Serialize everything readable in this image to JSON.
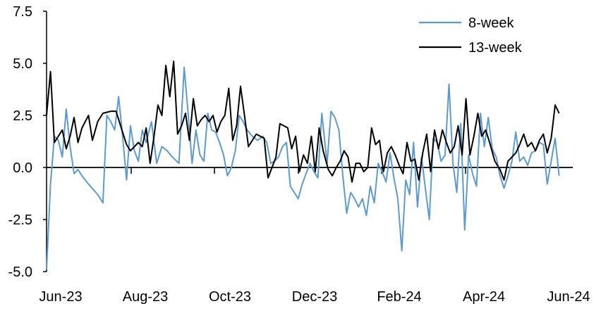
{
  "chart_data": {
    "type": "line",
    "title": "",
    "xlabel": "",
    "ylabel": "",
    "ylim": [
      -5.0,
      7.5
    ],
    "yticks": [
      "7.5",
      "5.0",
      "2.5",
      "0.0",
      "-2.5",
      "-5.0"
    ],
    "xticks": [
      "Jun-23",
      "Aug-23",
      "Oct-23",
      "Dec-23",
      "Feb-24",
      "Apr-24",
      "Jun-24"
    ],
    "xlim": [
      "2023-06-01",
      "2024-06-30"
    ],
    "legend": "top-right",
    "grid": false,
    "series": [
      {
        "name": "8-week",
        "color": "#5b9bd5",
        "points": [
          [
            "2023-06-01",
            -4.9
          ],
          [
            "2023-06-04",
            -0.8
          ],
          [
            "2023-06-07",
            1.5
          ],
          [
            "2023-06-10",
            1.3
          ],
          [
            "2023-06-13",
            0.5
          ],
          [
            "2023-06-16",
            2.8
          ],
          [
            "2023-06-19",
            1.0
          ],
          [
            "2023-06-22",
            -0.3
          ],
          [
            "2023-06-25",
            -0.1
          ],
          [
            "2023-06-28",
            -0.4
          ],
          [
            "2023-07-03",
            -0.8
          ],
          [
            "2023-07-10",
            -1.3
          ],
          [
            "2023-07-14",
            -1.7
          ],
          [
            "2023-07-17",
            2.5
          ],
          [
            "2023-07-20",
            2.2
          ],
          [
            "2023-07-23",
            1.8
          ],
          [
            "2023-07-26",
            3.4
          ],
          [
            "2023-07-29",
            1.5
          ],
          [
            "2023-08-01",
            -0.6
          ],
          [
            "2023-08-04",
            2.0
          ],
          [
            "2023-08-07",
            0.8
          ],
          [
            "2023-08-10",
            0.3
          ],
          [
            "2023-08-13",
            1.8
          ],
          [
            "2023-08-16",
            1.2
          ],
          [
            "2023-08-20",
            2.2
          ],
          [
            "2023-08-24",
            0.2
          ],
          [
            "2023-08-28",
            1.0
          ],
          [
            "2023-09-01",
            0.8
          ],
          [
            "2023-09-05",
            0.5
          ],
          [
            "2023-09-10",
            0.2
          ],
          [
            "2023-09-14",
            4.8
          ],
          [
            "2023-09-17",
            2.6
          ],
          [
            "2023-09-20",
            0.2
          ],
          [
            "2023-09-23",
            1.8
          ],
          [
            "2023-09-26",
            0.6
          ],
          [
            "2023-09-29",
            0.3
          ],
          [
            "2023-10-02",
            2.6
          ],
          [
            "2023-10-05",
            1.8
          ],
          [
            "2023-10-08",
            1.7
          ],
          [
            "2023-10-11",
            1.2
          ],
          [
            "2023-10-14",
            0.6
          ],
          [
            "2023-10-17",
            -0.4
          ],
          [
            "2023-10-20",
            0.0
          ],
          [
            "2023-10-23",
            0.8
          ],
          [
            "2023-10-26",
            2.5
          ],
          [
            "2023-10-29",
            2.2
          ],
          [
            "2023-11-01",
            1.8
          ],
          [
            "2023-11-05",
            1.5
          ],
          [
            "2023-11-09",
            1.3
          ],
          [
            "2023-11-13",
            1.5
          ],
          [
            "2023-11-16",
            1.2
          ],
          [
            "2023-11-19",
            0.2
          ],
          [
            "2023-11-22",
            0.3
          ],
          [
            "2023-11-25",
            0.5
          ],
          [
            "2023-11-28",
            1.0
          ],
          [
            "2023-12-01",
            1.2
          ],
          [
            "2023-12-04",
            -0.9
          ],
          [
            "2023-12-07",
            -1.2
          ],
          [
            "2023-12-10",
            -1.5
          ],
          [
            "2023-12-13",
            -0.8
          ],
          [
            "2023-12-16",
            -0.3
          ],
          [
            "2023-12-19",
            0.2
          ],
          [
            "2023-12-22",
            -0.2
          ],
          [
            "2023-12-25",
            -0.5
          ],
          [
            "2023-12-28",
            2.6
          ],
          [
            "2024-01-01",
            0.2
          ],
          [
            "2024-01-04",
            2.7
          ],
          [
            "2024-01-07",
            2.4
          ],
          [
            "2024-01-10",
            1.8
          ],
          [
            "2024-01-13",
            -0.4
          ],
          [
            "2024-01-16",
            -2.2
          ],
          [
            "2024-01-19",
            -1.2
          ],
          [
            "2024-01-22",
            -1.5
          ],
          [
            "2024-01-25",
            -1.9
          ],
          [
            "2024-01-28",
            -1.5
          ],
          [
            "2024-01-31",
            -2.3
          ],
          [
            "2024-02-03",
            -0.9
          ],
          [
            "2024-02-06",
            -1.7
          ],
          [
            "2024-02-09",
            0.2
          ],
          [
            "2024-02-12",
            -0.2
          ],
          [
            "2024-02-15",
            -0.7
          ],
          [
            "2024-02-18",
            0.7
          ],
          [
            "2024-02-21",
            -0.5
          ],
          [
            "2024-02-24",
            -1.5
          ],
          [
            "2024-02-27",
            -4.0
          ],
          [
            "2024-03-01",
            -0.6
          ],
          [
            "2024-03-04",
            -1.3
          ],
          [
            "2024-03-07",
            1.2
          ],
          [
            "2024-03-10",
            -1.9
          ],
          [
            "2024-03-13",
            0.5
          ],
          [
            "2024-03-16",
            -1.0
          ],
          [
            "2024-03-19",
            -2.5
          ],
          [
            "2024-03-22",
            1.4
          ],
          [
            "2024-03-25",
            1.2
          ],
          [
            "2024-03-28",
            0.3
          ],
          [
            "2024-03-31",
            0.6
          ],
          [
            "2024-04-03",
            4.0
          ],
          [
            "2024-04-06",
            0.2
          ],
          [
            "2024-04-09",
            -1.2
          ],
          [
            "2024-04-12",
            2.1
          ],
          [
            "2024-04-15",
            -3.0
          ],
          [
            "2024-04-18",
            0.6
          ],
          [
            "2024-04-21",
            -0.3
          ],
          [
            "2024-04-24",
            -0.9
          ],
          [
            "2024-04-27",
            2.6
          ],
          [
            "2024-04-30",
            1.0
          ],
          [
            "2024-05-03",
            2.4
          ],
          [
            "2024-05-06",
            0.9
          ],
          [
            "2024-05-09",
            0.5
          ],
          [
            "2024-05-12",
            -0.4
          ],
          [
            "2024-05-15",
            -1.0
          ],
          [
            "2024-05-18",
            -0.4
          ],
          [
            "2024-05-21",
            0.3
          ],
          [
            "2024-05-24",
            1.7
          ],
          [
            "2024-05-27",
            0.3
          ],
          [
            "2024-05-30",
            0.5
          ],
          [
            "2024-06-02",
            0.1
          ],
          [
            "2024-06-05",
            0.7
          ],
          [
            "2024-06-08",
            0.8
          ],
          [
            "2024-06-11",
            1.2
          ],
          [
            "2024-06-14",
            1.1
          ],
          [
            "2024-06-17",
            -0.8
          ],
          [
            "2024-06-20",
            0.3
          ],
          [
            "2024-06-23",
            1.4
          ],
          [
            "2024-06-26",
            -0.4
          ]
        ]
      },
      {
        "name": "13-week",
        "color": "#000000",
        "points": [
          [
            "2023-06-01",
            2.5
          ],
          [
            "2023-06-04",
            4.6
          ],
          [
            "2023-06-07",
            1.2
          ],
          [
            "2023-06-10",
            1.5
          ],
          [
            "2023-06-13",
            1.8
          ],
          [
            "2023-06-16",
            0.9
          ],
          [
            "2023-06-19",
            1.5
          ],
          [
            "2023-06-22",
            2.4
          ],
          [
            "2023-06-25",
            1.2
          ],
          [
            "2023-06-28",
            1.9
          ],
          [
            "2023-07-03",
            2.5
          ],
          [
            "2023-07-06",
            1.3
          ],
          [
            "2023-07-10",
            2.2
          ],
          [
            "2023-07-14",
            2.6
          ],
          [
            "2023-07-20",
            2.7
          ],
          [
            "2023-07-24",
            2.7
          ],
          [
            "2023-07-28",
            1.9
          ],
          [
            "2023-08-01",
            1.1
          ],
          [
            "2023-08-04",
            0.8
          ],
          [
            "2023-08-07",
            1.0
          ],
          [
            "2023-08-10",
            1.2
          ],
          [
            "2023-08-13",
            1.0
          ],
          [
            "2023-08-16",
            1.9
          ],
          [
            "2023-08-19",
            0.2
          ],
          [
            "2023-08-22",
            1.5
          ],
          [
            "2023-08-25",
            3.0
          ],
          [
            "2023-08-28",
            2.5
          ],
          [
            "2023-08-31",
            4.9
          ],
          [
            "2023-09-03",
            3.4
          ],
          [
            "2023-09-06",
            5.1
          ],
          [
            "2023-09-09",
            1.6
          ],
          [
            "2023-09-12",
            2.0
          ],
          [
            "2023-09-15",
            2.6
          ],
          [
            "2023-09-18",
            1.3
          ],
          [
            "2023-09-21",
            3.3
          ],
          [
            "2023-09-24",
            2.0
          ],
          [
            "2023-09-27",
            2.3
          ],
          [
            "2023-09-30",
            2.5
          ],
          [
            "2023-10-03",
            2.2
          ],
          [
            "2023-10-06",
            2.5
          ],
          [
            "2023-10-09",
            1.7
          ],
          [
            "2023-10-12",
            2.2
          ],
          [
            "2023-10-15",
            2.5
          ],
          [
            "2023-10-18",
            3.8
          ],
          [
            "2023-10-21",
            1.3
          ],
          [
            "2023-10-24",
            2.0
          ],
          [
            "2023-10-27",
            3.9
          ],
          [
            "2023-10-30",
            2.5
          ],
          [
            "2023-11-02",
            1.0
          ],
          [
            "2023-11-05",
            1.3
          ],
          [
            "2023-11-08",
            1.6
          ],
          [
            "2023-11-11",
            1.5
          ],
          [
            "2023-11-14",
            1.4
          ],
          [
            "2023-11-17",
            -0.5
          ],
          [
            "2023-11-20",
            0.0
          ],
          [
            "2023-11-23",
            0.5
          ],
          [
            "2023-11-26",
            2.1
          ],
          [
            "2023-11-29",
            2.0
          ],
          [
            "2023-12-02",
            1.9
          ],
          [
            "2023-12-05",
            0.9
          ],
          [
            "2023-12-08",
            1.5
          ],
          [
            "2023-12-11",
            -0.2
          ],
          [
            "2023-12-14",
            0.6
          ],
          [
            "2023-12-17",
            0.2
          ],
          [
            "2023-12-20",
            1.5
          ],
          [
            "2023-12-23",
            -0.2
          ],
          [
            "2023-12-26",
            1.9
          ],
          [
            "2023-12-29",
            0.8
          ],
          [
            "2024-01-02",
            -0.1
          ],
          [
            "2024-01-05",
            -0.4
          ],
          [
            "2024-01-08",
            0.0
          ],
          [
            "2024-01-11",
            0.3
          ],
          [
            "2024-01-14",
            0.8
          ],
          [
            "2024-01-17",
            0.5
          ],
          [
            "2024-01-20",
            -0.7
          ],
          [
            "2024-01-23",
            0.2
          ],
          [
            "2024-01-26",
            0.2
          ],
          [
            "2024-01-29",
            -0.2
          ],
          [
            "2024-02-01",
            0.0
          ],
          [
            "2024-02-04",
            1.9
          ],
          [
            "2024-02-07",
            1.1
          ],
          [
            "2024-02-10",
            1.3
          ],
          [
            "2024-02-13",
            -0.2
          ],
          [
            "2024-02-16",
            0.7
          ],
          [
            "2024-02-19",
            1.0
          ],
          [
            "2024-02-22",
            0.6
          ],
          [
            "2024-02-25",
            0.1
          ],
          [
            "2024-02-28",
            -0.3
          ],
          [
            "2024-03-02",
            1.2
          ],
          [
            "2024-03-05",
            0.3
          ],
          [
            "2024-03-08",
            0.4
          ],
          [
            "2024-03-11",
            -0.6
          ],
          [
            "2024-03-14",
            0.7
          ],
          [
            "2024-03-17",
            1.6
          ],
          [
            "2024-03-20",
            -0.2
          ],
          [
            "2024-03-23",
            1.8
          ],
          [
            "2024-03-26",
            0.9
          ],
          [
            "2024-03-29",
            1.8
          ],
          [
            "2024-04-01",
            1.2
          ],
          [
            "2024-04-04",
            0.7
          ],
          [
            "2024-04-07",
            1.0
          ],
          [
            "2024-04-10",
            2.0
          ],
          [
            "2024-04-13",
            0.6
          ],
          [
            "2024-04-16",
            3.3
          ],
          [
            "2024-04-19",
            0.6
          ],
          [
            "2024-04-22",
            1.5
          ],
          [
            "2024-04-25",
            2.6
          ],
          [
            "2024-04-28",
            1.5
          ],
          [
            "2024-05-01",
            1.8
          ],
          [
            "2024-05-04",
            1.2
          ],
          [
            "2024-05-08",
            0.3
          ],
          [
            "2024-05-12",
            -0.1
          ],
          [
            "2024-05-15",
            -0.6
          ],
          [
            "2024-05-18",
            0.3
          ],
          [
            "2024-05-21",
            0.5
          ],
          [
            "2024-05-24",
            0.7
          ],
          [
            "2024-05-27",
            1.1
          ],
          [
            "2024-05-30",
            1.6
          ],
          [
            "2024-06-02",
            1.0
          ],
          [
            "2024-06-05",
            1.2
          ],
          [
            "2024-06-08",
            0.8
          ],
          [
            "2024-06-11",
            1.3
          ],
          [
            "2024-06-14",
            1.6
          ],
          [
            "2024-06-17",
            0.7
          ],
          [
            "2024-06-20",
            1.4
          ],
          [
            "2024-06-23",
            3.0
          ],
          [
            "2024-06-26",
            2.6
          ]
        ]
      }
    ]
  }
}
